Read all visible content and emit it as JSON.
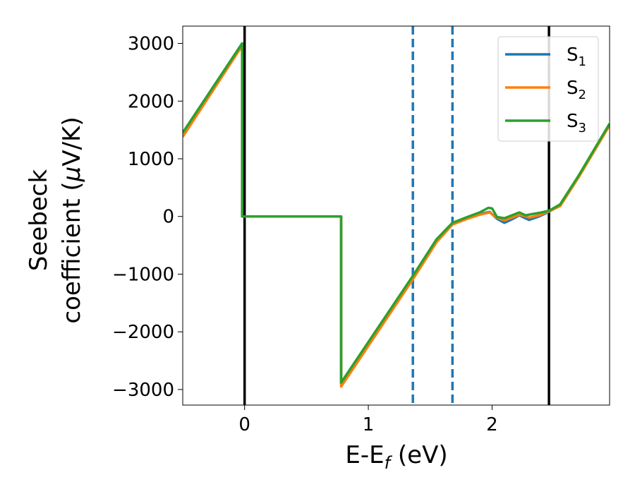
{
  "chart_data": {
    "type": "line",
    "title": "",
    "xlabel": {
      "main": "E-E",
      "sub": "f",
      "tail": " (eV)"
    },
    "ylabel": {
      "line1": "Seebeck",
      "line2_pre": "coefficient  (",
      "mu": "μ",
      "line2_post": "V/K)"
    },
    "xlim": [
      -0.5,
      2.95
    ],
    "ylim": [
      -3270,
      3300
    ],
    "xticks": [
      0,
      1,
      2
    ],
    "xtick_labels": [
      "0",
      "1",
      "2"
    ],
    "yticks": [
      -3000,
      -2000,
      -1000,
      0,
      1000,
      2000,
      3000
    ],
    "ytick_labels": [
      "−3000",
      "−2000",
      "−1000",
      "0",
      "1000",
      "2000",
      "3000"
    ],
    "grid": false,
    "legend_position": "top-right",
    "vertical_lines": [
      {
        "x": 0.0,
        "style": "solid",
        "color": "#000000"
      },
      {
        "x": 2.46,
        "style": "solid",
        "color": "#000000"
      },
      {
        "x": 1.36,
        "style": "dashed",
        "color": "#1f77b4"
      },
      {
        "x": 1.68,
        "style": "dashed",
        "color": "#1f77b4"
      }
    ],
    "series": [
      {
        "name": "S",
        "sub": "1",
        "color": "#1f77b4",
        "points": [
          [
            -0.5,
            1450
          ],
          [
            -0.02,
            3000
          ],
          [
            -0.02,
            0
          ],
          [
            0.78,
            0
          ],
          [
            0.78,
            -2900
          ],
          [
            1.36,
            -1050
          ],
          [
            1.55,
            -420
          ],
          [
            1.68,
            -120
          ],
          [
            1.8,
            -20
          ],
          [
            1.9,
            40
          ],
          [
            1.98,
            80
          ],
          [
            2.04,
            -40
          ],
          [
            2.1,
            -110
          ],
          [
            2.16,
            -50
          ],
          [
            2.22,
            20
          ],
          [
            2.26,
            -20
          ],
          [
            2.3,
            -60
          ],
          [
            2.38,
            0
          ],
          [
            2.46,
            80
          ],
          [
            2.55,
            200
          ],
          [
            2.7,
            700
          ],
          [
            2.95,
            1600
          ]
        ]
      },
      {
        "name": "S",
        "sub": "2",
        "color": "#ff7f0e",
        "points": [
          [
            -0.5,
            1380
          ],
          [
            -0.02,
            2960
          ],
          [
            -0.02,
            0
          ],
          [
            0.78,
            0
          ],
          [
            0.78,
            -2950
          ],
          [
            1.36,
            -1090
          ],
          [
            1.55,
            -450
          ],
          [
            1.68,
            -140
          ],
          [
            1.8,
            -40
          ],
          [
            1.9,
            30
          ],
          [
            1.98,
            70
          ],
          [
            2.04,
            -20
          ],
          [
            2.1,
            -70
          ],
          [
            2.16,
            -20
          ],
          [
            2.22,
            30
          ],
          [
            2.26,
            10
          ],
          [
            2.3,
            -20
          ],
          [
            2.38,
            20
          ],
          [
            2.46,
            90
          ],
          [
            2.55,
            180
          ],
          [
            2.7,
            680
          ],
          [
            2.95,
            1580
          ]
        ]
      },
      {
        "name": "S",
        "sub": "3",
        "color": "#2ca02c",
        "points": [
          [
            -0.5,
            1450
          ],
          [
            -0.02,
            3000
          ],
          [
            -0.02,
            0
          ],
          [
            0.78,
            0
          ],
          [
            0.78,
            -2880
          ],
          [
            1.36,
            -1030
          ],
          [
            1.55,
            -400
          ],
          [
            1.68,
            -110
          ],
          [
            1.8,
            -10
          ],
          [
            1.9,
            70
          ],
          [
            1.97,
            150
          ],
          [
            2.0,
            140
          ],
          [
            2.04,
            -10
          ],
          [
            2.1,
            -30
          ],
          [
            2.16,
            20
          ],
          [
            2.22,
            70
          ],
          [
            2.27,
            20
          ],
          [
            2.32,
            40
          ],
          [
            2.4,
            70
          ],
          [
            2.46,
            100
          ],
          [
            2.55,
            210
          ],
          [
            2.7,
            710
          ],
          [
            2.95,
            1610
          ]
        ]
      }
    ]
  }
}
